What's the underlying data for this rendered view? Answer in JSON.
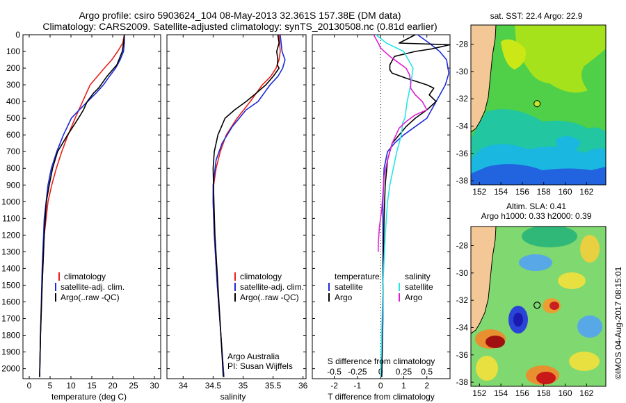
{
  "title": {
    "line1": "Argo profile: csiro 5903624_104 08-May-2013 32.361S 157.38E (DM data)",
    "line2": "Climatology: CARS2009. Satellite-adjusted climatology: synTS_20130508.nc (0.81d earlier)"
  },
  "colors": {
    "climatology": "#e8201a",
    "satellite": "#1c2ad8",
    "argo": "#000000",
    "sat_s": "#28e4e8",
    "argo_s": "#e020d0"
  },
  "depth_ticks": [
    0,
    100,
    200,
    300,
    400,
    500,
    600,
    700,
    800,
    900,
    1000,
    1100,
    1200,
    1300,
    1400,
    1500,
    1600,
    1700,
    1800,
    1900,
    2000
  ],
  "legend_profile": [
    "climatology",
    "satellite-adj. clim.",
    "Argo(..raw -QC)"
  ],
  "credit": {
    "line1": "Argo Australia",
    "line2": "PI: Susan Wijffels"
  },
  "diff_legend": {
    "temperature": "temperature",
    "salinity": "salinity",
    "satellite": "satellite",
    "argo": "Argo"
  },
  "map_top": {
    "caption": "sat. SST: 22.4  Argo: 22.9"
  },
  "map_bottom": {
    "caption1": "Altim. SLA: 0.41",
    "caption2": "Argo h1000: 0.33 h2000: 0.39"
  },
  "map_lat_ticks": [
    -28,
    -30,
    -32,
    -34,
    -36,
    -38
  ],
  "map_lon_ticks": [
    152,
    154,
    156,
    158,
    160,
    162
  ],
  "float_position": {
    "lon": 157.38,
    "lat": -32.361
  },
  "stamp": "©IMOS 04-Aug-2017 08:15:01",
  "chart_data": [
    {
      "type": "line",
      "xlabel": "temperature (deg C)",
      "xticks": [
        0,
        5,
        10,
        15,
        20,
        25,
        30
      ],
      "xlim": [
        -1.5,
        31.5
      ],
      "ylim": [
        0,
        2060
      ],
      "y_reversed": true,
      "series": [
        {
          "name": "climatology",
          "color": "#e8201a",
          "x": [
            22.8,
            22.4,
            21.2,
            19.8,
            18.0,
            16.3,
            14.6,
            12.8,
            11.0,
            9.3,
            7.8,
            6.5,
            5.4,
            4.5,
            3.6,
            3.1,
            2.7,
            2.5
          ],
          "y": [
            0,
            50,
            100,
            150,
            200,
            250,
            300,
            400,
            500,
            600,
            700,
            800,
            900,
            1000,
            1200,
            1500,
            1800,
            2050
          ]
        },
        {
          "name": "satellite-adj. clim.",
          "color": "#1c2ad8",
          "x": [
            22.8,
            22.8,
            22.6,
            21.8,
            20.7,
            19.2,
            17.8,
            16.0,
            14.0,
            12.0,
            10.1,
            8.2,
            6.6,
            5.3,
            4.5,
            3.6,
            3.1,
            2.7,
            2.5
          ],
          "y": [
            0,
            50,
            100,
            150,
            200,
            250,
            300,
            350,
            400,
            450,
            500,
            600,
            700,
            800,
            900,
            1100,
            1400,
            1800,
            2050
          ]
        },
        {
          "name": "Argo(..raw -QC)",
          "color": "#000000",
          "x": [
            22.8,
            22.6,
            22.3,
            21.5,
            21.0,
            20.3,
            18.6,
            17.2,
            16.6,
            15.4,
            13.9,
            13.0,
            11.8,
            10.5,
            9.2,
            8.0,
            6.8,
            5.6,
            4.8,
            4.1,
            3.6,
            3.1,
            2.7,
            2.5
          ],
          "y": [
            0,
            50,
            100,
            150,
            180,
            200,
            250,
            300,
            320,
            350,
            400,
            450,
            500,
            550,
            600,
            650,
            700,
            800,
            900,
            1000,
            1200,
            1500,
            1800,
            2050
          ]
        }
      ]
    },
    {
      "type": "line",
      "xlabel": "salinity",
      "xticks": [
        34,
        34.5,
        35,
        35.5,
        36
      ],
      "xlim": [
        33.73,
        36.05
      ],
      "ylim": [
        0,
        2060
      ],
      "y_reversed": true,
      "series": [
        {
          "name": "climatology",
          "color": "#e8201a",
          "x": [
            35.6,
            35.62,
            35.6,
            35.55,
            35.46,
            35.32,
            35.12,
            34.9,
            34.72,
            34.62,
            34.55,
            34.51,
            34.5,
            34.52,
            34.57,
            34.63,
            34.68
          ],
          "y": [
            0,
            100,
            150,
            200,
            250,
            300,
            400,
            500,
            600,
            700,
            800,
            900,
            1000,
            1200,
            1500,
            1800,
            2050
          ]
        },
        {
          "name": "satellite-adj. clim.",
          "color": "#1c2ad8",
          "x": [
            35.62,
            35.65,
            35.7,
            35.66,
            35.58,
            35.45,
            35.25,
            35.05,
            34.82,
            34.65,
            34.55,
            34.5,
            34.5,
            34.52,
            34.57,
            34.63,
            34.68
          ],
          "y": [
            0,
            100,
            150,
            200,
            250,
            300,
            400,
            450,
            550,
            650,
            750,
            900,
            1000,
            1200,
            1500,
            1800,
            2050
          ]
        },
        {
          "name": "Argo(..raw -QC)",
          "color": "#000000",
          "x": [
            35.58,
            35.6,
            35.56,
            35.58,
            35.57,
            35.6,
            35.5,
            35.38,
            35.22,
            35.05,
            34.86,
            34.7,
            34.58,
            34.52,
            34.5,
            34.51,
            34.53,
            34.58,
            34.63,
            34.67
          ],
          "y": [
            0,
            50,
            100,
            150,
            180,
            200,
            250,
            300,
            350,
            400,
            450,
            500,
            600,
            700,
            800,
            950,
            1200,
            1500,
            1800,
            2050
          ]
        }
      ]
    },
    {
      "type": "line",
      "xlabel": "T difference from climatology",
      "xlabel_top": "S difference from climatology",
      "xticks": [
        -2,
        -1,
        0,
        1,
        2
      ],
      "xticks_top": [
        "-0.5",
        "-0.25",
        "0",
        "0.25",
        "0.5"
      ],
      "xticks_top_pos": [
        -2,
        -1,
        0,
        1,
        2
      ],
      "xlim": [
        -2.95,
        3.0
      ],
      "ylim": [
        0,
        2060
      ],
      "y_reversed": true,
      "series": [
        {
          "name": "temperature satellite",
          "color": "#1c2ad8",
          "x": [
            1.6,
            2.1,
            2.55,
            2.85,
            2.95,
            2.8,
            2.6,
            2.4,
            2.2,
            2.0,
            1.5,
            1.0,
            0.6,
            0.3,
            0.15,
            0.1,
            0.1,
            0.1,
            0.05
          ],
          "y": [
            0,
            50,
            100,
            150,
            230,
            300,
            350,
            400,
            450,
            500,
            550,
            600,
            650,
            700,
            800,
            1000,
            1300,
            1700,
            2050
          ]
        },
        {
          "name": "temperature Argo",
          "color": "#000000",
          "x": [
            1.5,
            0.8,
            3.0,
            2.2,
            1.5,
            0.6,
            0.4,
            0.4,
            0.5,
            1.1,
            2.0,
            2.3,
            2.1,
            2.4,
            2.0,
            1.5,
            1.1,
            0.8,
            0.5,
            0.3,
            0.2,
            0.15,
            0.1,
            0.05
          ],
          "y": [
            0,
            50,
            60,
            85,
            100,
            130,
            180,
            210,
            230,
            260,
            300,
            320,
            360,
            400,
            450,
            500,
            550,
            600,
            650,
            750,
            900,
            1100,
            1500,
            2050
          ]
        },
        {
          "name": "salinity satellite",
          "color": "#28e4e8",
          "x": [
            -0.2,
            0.25,
            1.0,
            1.2,
            1.4,
            1.3,
            1.15,
            1.05,
            0.95,
            0.9,
            0.7,
            0.55,
            0.4,
            0.3,
            0.2,
            0.1,
            0.05,
            0.0
          ],
          "y": [
            0,
            50,
            100,
            150,
            200,
            300,
            400,
            500,
            530,
            600,
            700,
            800,
            900,
            1000,
            1200,
            1500,
            1800,
            2050
          ]
        },
        {
          "name": "salinity Argo",
          "color": "#e020d0",
          "x": [
            -0.3,
            -0.1,
            0.0,
            0.4,
            0.9,
            1.1,
            1.25,
            1.3,
            1.3,
            1.5,
            1.8,
            2.0,
            1.5,
            1.1,
            0.8,
            0.5,
            0.3,
            0.15,
            0.1,
            0.05,
            -0.05,
            -0.1,
            -0.1
          ],
          "y": [
            0,
            50,
            80,
            130,
            180,
            200,
            240,
            280,
            320,
            360,
            400,
            450,
            480,
            520,
            560,
            650,
            750,
            850,
            950,
            1050,
            1150,
            1250,
            1300
          ]
        }
      ]
    }
  ]
}
